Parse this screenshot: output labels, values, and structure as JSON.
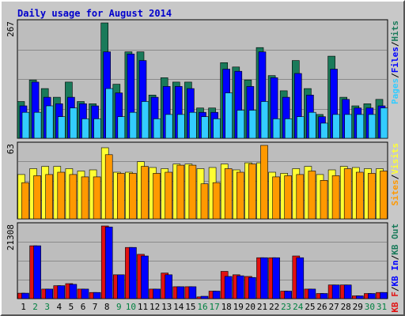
{
  "title": "Daily usage for August 2014",
  "colors": {
    "hits": "#1a7a5a",
    "files": "#0000ff",
    "pages": "#33ccff",
    "visits": "#ffff33",
    "sites": "#ff9900",
    "kbin": "#1a7a5a",
    "kbout": "#0000ff",
    "kbf": "#e11111",
    "weekday_label": "#000000",
    "weekend_label": "#008040",
    "panel_bg": "#bdbdbd",
    "frame_bg": "#c8c8c8"
  },
  "chart_data": [
    {
      "type": "bar",
      "name": "hits-files-pages",
      "max_label": "267",
      "ylim": [
        0,
        267
      ],
      "legend": [
        "Pages",
        "Files",
        "Hits"
      ],
      "legend_colors": [
        "#33ccff",
        "#0000ff",
        "#1a7a5a"
      ],
      "categories": [
        "1",
        "2",
        "3",
        "4",
        "5",
        "6",
        "7",
        "8",
        "9",
        "10",
        "11",
        "12",
        "13",
        "14",
        "15",
        "16",
        "17",
        "18",
        "19",
        "20",
        "21",
        "22",
        "23",
        "24",
        "25",
        "26",
        "27",
        "28",
        "29",
        "30",
        "31"
      ],
      "series": [
        {
          "name": "Hits",
          "values": [
            85,
            135,
            115,
            95,
            130,
            85,
            80,
            267,
            125,
            200,
            200,
            100,
            140,
            130,
            130,
            70,
            70,
            175,
            165,
            135,
            210,
            145,
            110,
            180,
            115,
            55,
            190,
            95,
            75,
            80,
            90
          ]
        },
        {
          "name": "Files",
          "values": [
            75,
            130,
            95,
            80,
            95,
            80,
            75,
            200,
            105,
            195,
            180,
            95,
            120,
            120,
            115,
            60,
            60,
            160,
            155,
            120,
            200,
            140,
            95,
            150,
            100,
            50,
            160,
            90,
            70,
            70,
            75
          ]
        },
        {
          "name": "Pages",
          "values": [
            60,
            60,
            75,
            50,
            70,
            45,
            45,
            115,
            50,
            60,
            85,
            45,
            55,
            55,
            60,
            50,
            45,
            105,
            65,
            65,
            85,
            45,
            45,
            50,
            60,
            35,
            55,
            55,
            55,
            55,
            70
          ]
        }
      ]
    },
    {
      "type": "bar",
      "name": "visits-sites",
      "max_label": "63",
      "ylim": [
        0,
        63
      ],
      "legend": [
        "Sites",
        "Visits"
      ],
      "legend_colors": [
        "#ff9900",
        "#ffff33"
      ],
      "categories": [
        "1",
        "2",
        "3",
        "4",
        "5",
        "6",
        "7",
        "8",
        "9",
        "10",
        "11",
        "12",
        "13",
        "14",
        "15",
        "16",
        "17",
        "18",
        "19",
        "20",
        "21",
        "22",
        "23",
        "24",
        "25",
        "26",
        "27",
        "28",
        "29",
        "30",
        "31"
      ],
      "series": [
        {
          "name": "Visits",
          "values": [
            38,
            43,
            45,
            45,
            43,
            41,
            42,
            61,
            40,
            40,
            49,
            44,
            43,
            47,
            47,
            43,
            44,
            47,
            42,
            48,
            48,
            40,
            39,
            43,
            45,
            38,
            42,
            45,
            44,
            43,
            43
          ]
        },
        {
          "name": "Sites",
          "values": [
            31,
            37,
            38,
            40,
            38,
            36,
            36,
            55,
            39,
            39,
            45,
            39,
            40,
            46,
            46,
            30,
            31,
            43,
            40,
            47,
            63,
            36,
            37,
            38,
            41,
            33,
            37,
            43,
            40,
            39,
            41
          ]
        }
      ]
    },
    {
      "type": "bar",
      "name": "kbf-kbin-kbout",
      "max_label": "21308",
      "ylim": [
        0,
        21308
      ],
      "legend": [
        "KB F",
        "KB In",
        "KB Out"
      ],
      "legend_colors": [
        "#e11111",
        "#0000ff",
        "#1a7a5a"
      ],
      "categories": [
        "1",
        "2",
        "3",
        "4",
        "5",
        "6",
        "7",
        "8",
        "9",
        "10",
        "11",
        "12",
        "13",
        "14",
        "15",
        "16",
        "17",
        "18",
        "19",
        "20",
        "21",
        "22",
        "23",
        "24",
        "25",
        "26",
        "27",
        "28",
        "29",
        "30",
        "31"
      ],
      "series": [
        {
          "name": "KB F",
          "values": [
            1600,
            15500,
            2800,
            3800,
            4400,
            2800,
            1800,
            21308,
            7000,
            15000,
            13000,
            2800,
            7500,
            3500,
            3500,
            500,
            2200,
            8000,
            7000,
            6500,
            12000,
            12000,
            2200,
            12500,
            2800,
            1500,
            4000,
            4000,
            800,
            1500,
            1800
          ]
        },
        {
          "name": "KB Out",
          "values": [
            1600,
            15500,
            2800,
            3800,
            4200,
            2800,
            1800,
            21000,
            7000,
            15000,
            12500,
            2800,
            7000,
            3500,
            3500,
            700,
            2200,
            6500,
            6700,
            6200,
            12000,
            12000,
            2200,
            12000,
            2800,
            1500,
            4000,
            4000,
            800,
            1500,
            1800
          ]
        }
      ]
    }
  ],
  "days": {
    "labels": [
      "1",
      "2",
      "3",
      "4",
      "5",
      "6",
      "7",
      "8",
      "9",
      "10",
      "11",
      "12",
      "13",
      "14",
      "15",
      "16",
      "17",
      "18",
      "19",
      "20",
      "21",
      "22",
      "23",
      "24",
      "25",
      "26",
      "27",
      "28",
      "29",
      "30",
      "31"
    ],
    "weekend": [
      false,
      true,
      true,
      false,
      false,
      false,
      false,
      false,
      true,
      true,
      false,
      false,
      false,
      false,
      false,
      true,
      true,
      false,
      false,
      false,
      false,
      false,
      true,
      true,
      false,
      false,
      false,
      false,
      false,
      true,
      true
    ]
  }
}
